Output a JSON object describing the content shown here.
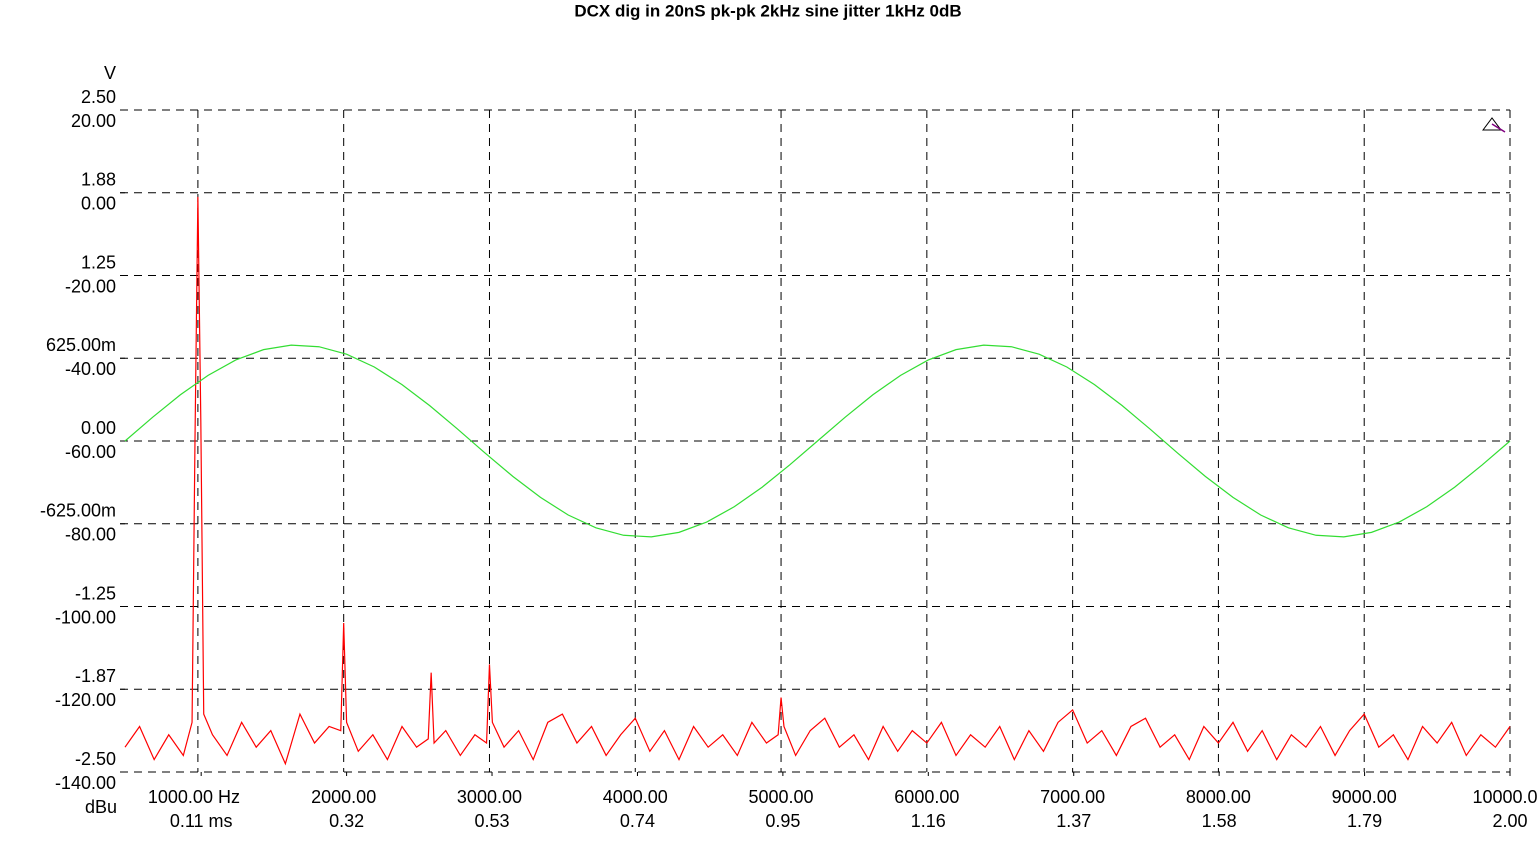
{
  "chart_data": {
    "type": "line",
    "title": "DCX dig in 20nS pk-pk 2kHz sine jitter 1kHz 0dB",
    "y_label": "dBu",
    "y2_label": "V",
    "xlim": [
      500,
      10000
    ],
    "xticks": [
      {
        "value": 1000,
        "label": "1000.00 Hz"
      },
      {
        "value": 2000,
        "label": "2000.00"
      },
      {
        "value": 3000,
        "label": "3000.00"
      },
      {
        "value": 4000,
        "label": "4000.00"
      },
      {
        "value": 5000,
        "label": "5000.00"
      },
      {
        "value": 6000,
        "label": "6000.00"
      },
      {
        "value": 7000,
        "label": "7000.00"
      },
      {
        "value": 8000,
        "label": "8000.00"
      },
      {
        "value": 9000,
        "label": "9000.00"
      },
      {
        "value": 10000,
        "label": "10000.00"
      }
    ],
    "x2lim": [
      0,
      2
    ],
    "x2ticks": [
      {
        "value": 0.11,
        "label": "0.11 ms"
      },
      0.32,
      0.53,
      0.74,
      0.95,
      1.16,
      1.37,
      1.58,
      1.79,
      {
        "value": 2,
        "label": "2.00"
      }
    ],
    "ylim": [
      -140,
      20
    ],
    "yticks": [
      {
        "value": 20,
        "label": "20.00"
      },
      {
        "value": 0,
        "label": "0.00"
      },
      {
        "value": -20,
        "label": "-20.00"
      },
      {
        "value": -40,
        "label": "-40.00"
      },
      {
        "value": -60,
        "label": "-60.00"
      },
      {
        "value": -80,
        "label": "-80.00"
      },
      {
        "value": -100,
        "label": "-100.00"
      },
      {
        "value": -120,
        "label": "-120.00"
      },
      {
        "value": -140,
        "label": "-140.00"
      }
    ],
    "y2lim": [
      -2.5,
      2.5
    ],
    "y2ticks": [
      {
        "value": 2.5,
        "label": "2.50"
      },
      {
        "value": 1.875,
        "label": "1.88"
      },
      {
        "value": 1.25,
        "label": "1.25"
      },
      {
        "value": 0.625,
        "label": "625.00m"
      },
      {
        "value": 0,
        "label": "0.00"
      },
      {
        "value": -0.625,
        "label": "-625.00m"
      },
      {
        "value": -1.25,
        "label": "-1.25"
      },
      {
        "value": -1.875,
        "label": "-1.87"
      },
      {
        "value": -2.5,
        "label": "-2.50"
      }
    ],
    "grid": true,
    "series": [
      {
        "color": "#ff0000",
        "axis": "y",
        "x_axis": "x",
        "x": [
          500,
          600,
          700,
          800,
          900,
          960,
          980,
          1000,
          1020,
          1040,
          1100,
          1200,
          1300,
          1400,
          1500,
          1600,
          1700,
          1800,
          1900,
          1980,
          2000,
          2020,
          2100,
          2200,
          2300,
          2400,
          2500,
          2580,
          2600,
          2620,
          2700,
          2800,
          2900,
          2980,
          3000,
          3020,
          3100,
          3200,
          3300,
          3400,
          3500,
          3600,
          3700,
          3800,
          3900,
          4000,
          4100,
          4200,
          4300,
          4400,
          4500,
          4600,
          4700,
          4800,
          4900,
          4980,
          5000,
          5020,
          5100,
          5200,
          5300,
          5400,
          5500,
          5600,
          5700,
          5800,
          5900,
          6000,
          6100,
          6200,
          6300,
          6400,
          6500,
          6600,
          6700,
          6800,
          6900,
          7000,
          7100,
          7200,
          7300,
          7400,
          7500,
          7600,
          7700,
          7800,
          7900,
          8000,
          8100,
          8200,
          8300,
          8400,
          8500,
          8600,
          8700,
          8800,
          8900,
          9000,
          9100,
          9200,
          9300,
          9400,
          9500,
          9600,
          9700,
          9800,
          9900,
          10000
        ],
        "values": [
          -134,
          -129,
          -137,
          -131,
          -136,
          -128,
          -60,
          -1,
          -55,
          -126,
          -131,
          -136,
          -128,
          -134,
          -130,
          -138,
          -126,
          -133,
          -129,
          -130,
          -104,
          -128,
          -135,
          -131,
          -137,
          -129,
          -134,
          -132,
          -116,
          -133,
          -130,
          -136,
          -131,
          -133,
          -114,
          -128,
          -134,
          -130,
          -137,
          -128,
          -126,
          -133,
          -129,
          -136,
          -131,
          -127,
          -135,
          -130,
          -137,
          -129,
          -134,
          -131,
          -136,
          -128,
          -133,
          -131,
          -122,
          -129,
          -136,
          -130,
          -127,
          -134,
          -131,
          -137,
          -129,
          -135,
          -130,
          -133,
          -128,
          -136,
          -131,
          -134,
          -129,
          -137,
          -130,
          -135,
          -128,
          -125,
          -133,
          -130,
          -136,
          -129,
          -127,
          -134,
          -131,
          -137,
          -129,
          -133,
          -128,
          -135,
          -130,
          -137,
          -131,
          -134,
          -129,
          -136,
          -130,
          -126,
          -134,
          -131,
          -137,
          -129,
          -133,
          -128,
          -136,
          -131,
          -134,
          -129
        ]
      },
      {
        "color": "#33dd33",
        "axis": "y2",
        "x_axis": "x2",
        "x": [
          0,
          0.04,
          0.08,
          0.12,
          0.16,
          0.2,
          0.24,
          0.28,
          0.32,
          0.36,
          0.4,
          0.44,
          0.48,
          0.52,
          0.56,
          0.6,
          0.64,
          0.68,
          0.72,
          0.76,
          0.8,
          0.84,
          0.88,
          0.92,
          0.96,
          1,
          1.04,
          1.08,
          1.12,
          1.16,
          1.2,
          1.24,
          1.28,
          1.32,
          1.36,
          1.4,
          1.44,
          1.48,
          1.52,
          1.56,
          1.6,
          1.64,
          1.68,
          1.72,
          1.76,
          1.8,
          1.84,
          1.88,
          1.92,
          1.96,
          2
        ],
        "values": [
          0,
          0.18,
          0.349,
          0.496,
          0.612,
          0.69,
          0.724,
          0.712,
          0.656,
          0.559,
          0.426,
          0.267,
          0.091,
          -0.091,
          -0.267,
          -0.426,
          -0.559,
          -0.656,
          -0.712,
          -0.724,
          -0.69,
          -0.612,
          -0.496,
          -0.349,
          -0.18,
          0,
          0.18,
          0.349,
          0.496,
          0.612,
          0.69,
          0.724,
          0.712,
          0.656,
          0.559,
          0.426,
          0.267,
          0.091,
          -0.091,
          -0.267,
          -0.426,
          -0.559,
          -0.656,
          -0.712,
          -0.724,
          -0.69,
          -0.612,
          -0.496,
          -0.349,
          -0.18,
          0
        ]
      }
    ]
  }
}
